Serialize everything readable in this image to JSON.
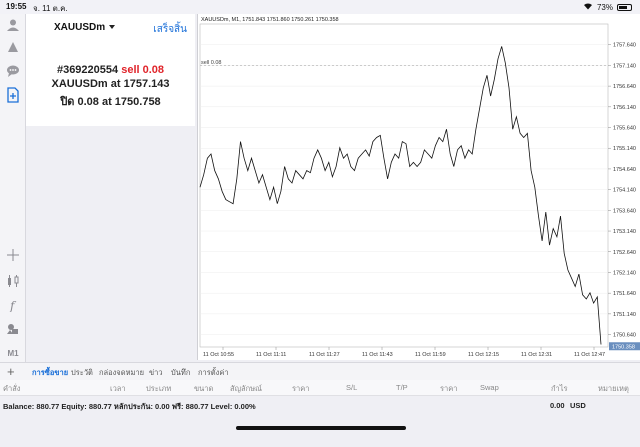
{
  "status_bar": {
    "time": "19:55",
    "date": "จ. 11 ต.ค.",
    "battery": "73%",
    "battery_level": 0.73
  },
  "toolbar": {
    "icons": [
      "user-icon",
      "signal-icon",
      "chat-icon",
      "new-order-icon",
      "crosshair-icon",
      "candles-icon",
      "function-icon",
      "objects-icon"
    ],
    "timeframe": "M1"
  },
  "detail": {
    "symbol": "XAUUSDm",
    "done_label": "เสร็จสิ้น",
    "ticket": "#369220554",
    "side_lots": "sell 0.08",
    "open_line": "XAUUSDm at 1757.143",
    "close_prefix": "ปิด 0.08 at ",
    "close_price": "1750.758"
  },
  "tabs": {
    "items": [
      "การซื้อขาย",
      "ประวัติ",
      "กล่องจดหมาย",
      "ข่าว",
      "บันทึก",
      "การตั้งค่า"
    ],
    "active_index": 0
  },
  "table": {
    "columns": [
      "คำสั่ง",
      "เวลา",
      "ประเภท",
      "ขนาด",
      "สัญลักษณ์",
      "ราคา",
      "S/L",
      "T/P",
      "ราคา",
      "Swap",
      "กำไร",
      "หมายเหตุ"
    ]
  },
  "balance": {
    "text": "Balance: 880.77 Equity: 880.77 หลักประกัน: 0.00 ฟรี: 880.77 Level: 0.00%",
    "profit": "0.00",
    "currency": "USD"
  },
  "chart_data": {
    "type": "line",
    "header": "XAUUSDm, M1, 1751.843 1751.860 1750.261 1750.358",
    "sell_line_label": "sell 0.08",
    "sell_price": 1757.143,
    "current_price_label": "1750.358",
    "current_price": 1750.358,
    "ylim": [
      1750.34,
      1758.14
    ],
    "y_ticks": [
      1757.64,
      1757.14,
      1756.64,
      1756.14,
      1755.64,
      1755.14,
      1754.64,
      1754.14,
      1753.64,
      1753.14,
      1752.64,
      1752.14,
      1751.64,
      1751.14,
      1750.64
    ],
    "y_tick_labels": [
      "1757.640",
      "1757.140",
      "1756.640",
      "1756.140",
      "1755.640",
      "1755.140",
      "1754.640",
      "1754.140",
      "1753.640",
      "1753.140",
      "1752.640",
      "1752.140",
      "1751.640",
      "1751.140",
      "1750.640"
    ],
    "x_tick_labels": [
      "11 Oct 10:55",
      "11 Oct 11:11",
      "11 Oct 11:27",
      "11 Oct 11:43",
      "11 Oct 11:59",
      "11 Oct 12:15",
      "11 Oct 12:31",
      "11 Oct 12:47"
    ],
    "grid": true,
    "series": [
      {
        "values": [
          1754.2,
          1754.5,
          1754.9,
          1755.0,
          1754.6,
          1754.4,
          1754.1,
          1753.9,
          1753.85,
          1753.8,
          1754.4,
          1755.3,
          1754.9,
          1754.6,
          1754.9,
          1754.6,
          1754.3,
          1754.5,
          1754.2,
          1753.9,
          1754.2,
          1753.8,
          1754.1,
          1754.7,
          1754.4,
          1754.3,
          1754.6,
          1754.5,
          1754.4,
          1754.6,
          1754.55,
          1754.9,
          1755.1,
          1754.9,
          1754.6,
          1754.8,
          1754.45,
          1754.7,
          1755.15,
          1754.9,
          1755.0,
          1754.7,
          1754.6,
          1754.9,
          1755.0,
          1755.1,
          1754.95,
          1755.3,
          1755.4,
          1755.45,
          1754.9,
          1754.4,
          1754.8,
          1755.0,
          1754.9,
          1755.3,
          1755.25,
          1754.7,
          1754.8,
          1754.7,
          1754.8,
          1755.1,
          1755.0,
          1754.9,
          1755.2,
          1755.4,
          1755.3,
          1755.6,
          1755.0,
          1754.7,
          1755.1,
          1755.2,
          1754.9,
          1755.1,
          1755.0,
          1755.6,
          1756.1,
          1756.6,
          1756.9,
          1756.4,
          1756.8,
          1757.3,
          1757.6,
          1757.2,
          1756.6,
          1755.6,
          1755.9,
          1755.5,
          1755.4,
          1755.5,
          1754.6,
          1754.2,
          1753.5,
          1752.9,
          1753.6,
          1752.8,
          1753.2,
          1753.0,
          1753.5,
          1752.6,
          1752.2,
          1752.0,
          1751.8,
          1752.1,
          1751.6,
          1751.5,
          1751.65,
          1751.4,
          1751.55,
          1750.4
        ]
      }
    ]
  }
}
